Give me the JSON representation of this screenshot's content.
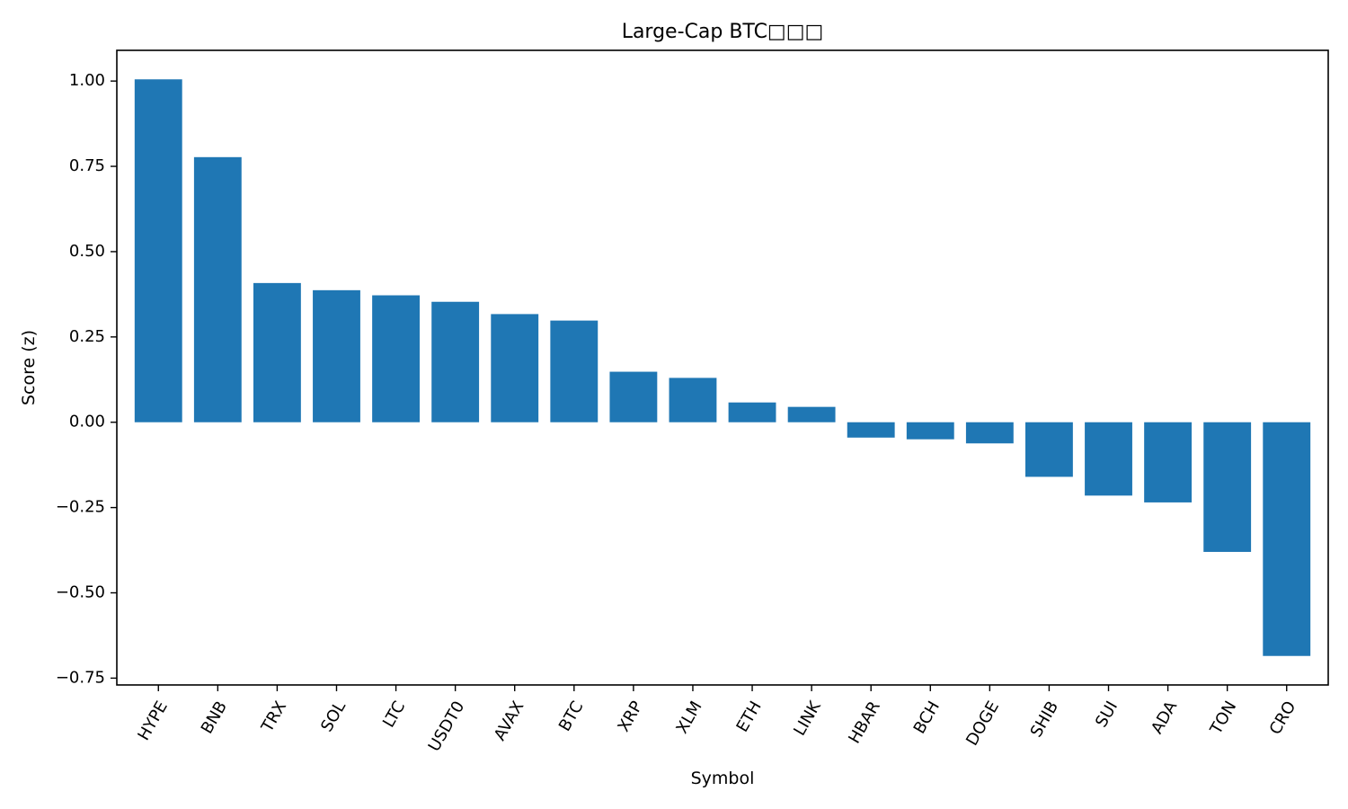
{
  "chart_data": {
    "type": "bar",
    "title": "Large-Cap BTC□□□",
    "xlabel": "Symbol",
    "ylabel": "Score (z)",
    "ylim": [
      -0.77,
      1.09
    ],
    "yticks": [
      1.0,
      0.75,
      0.5,
      0.25,
      0.0,
      -0.25,
      -0.5,
      -0.75
    ],
    "ytick_labels": [
      "1.00",
      "0.75",
      "0.50",
      "0.25",
      "0.00",
      "−0.25",
      "−0.50",
      "−0.75"
    ],
    "categories": [
      "HYPE",
      "BNB",
      "TRX",
      "SOL",
      "LTC",
      "USDT0",
      "AVAX",
      "BTC",
      "XRP",
      "XLM",
      "ETH",
      "LINK",
      "HBAR",
      "BCH",
      "DOGE",
      "SHIB",
      "SUI",
      "ADA",
      "TON",
      "CRO"
    ],
    "values": [
      1.005,
      0.777,
      0.408,
      0.387,
      0.372,
      0.353,
      0.317,
      0.298,
      0.148,
      0.13,
      0.058,
      0.045,
      -0.045,
      -0.05,
      -0.062,
      -0.16,
      -0.215,
      -0.235,
      -0.38,
      -0.685
    ],
    "bar_color": "#1f77b4",
    "grid": false,
    "legend": "none"
  }
}
